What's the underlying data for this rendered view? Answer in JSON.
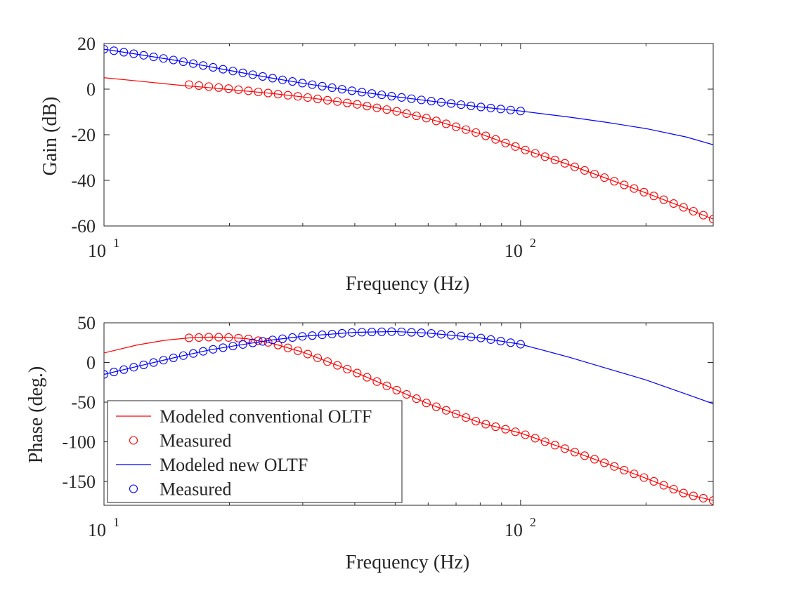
{
  "chart_data": [
    {
      "type": "line",
      "xlabel": "Frequency (Hz)",
      "ylabel": "Gain (dB)",
      "xscale": "log",
      "xlim": [
        10,
        290
      ],
      "ylim": [
        -60,
        20
      ],
      "yticks": [
        20,
        0,
        -20,
        -40,
        -60
      ],
      "ytick_labels": [
        "20",
        "0",
        "-20",
        "-40",
        "-60"
      ],
      "xtick_labels": [
        {
          "base": "10",
          "exp": "1",
          "value": 10
        },
        {
          "base": "10",
          "exp": "2",
          "value": 100
        }
      ],
      "grid": false,
      "series": [
        {
          "name": "Modeled conventional OLTF",
          "style": "line",
          "color": "#ff0000",
          "x": [
            10,
            12,
            15,
            18,
            20,
            25,
            30,
            40,
            50,
            60,
            80,
            100,
            130,
            160,
            200,
            250,
            290
          ],
          "y": [
            5,
            3.6,
            1.8,
            0.6,
            -0.2,
            -1.8,
            -3.4,
            -6.5,
            -9.6,
            -12.9,
            -19.6,
            -26,
            -33,
            -39,
            -45.5,
            -52.3,
            -57
          ]
        },
        {
          "name": "Measured",
          "style": "markers",
          "color": "#ff0000",
          "x": [
            16,
            20,
            25,
            30,
            40,
            50,
            60,
            80,
            100,
            130,
            160,
            200,
            250,
            290
          ],
          "y": [
            2,
            0.2,
            -1.8,
            -3.4,
            -6.5,
            -9.6,
            -12.9,
            -19.6,
            -26,
            -33,
            -39,
            -45.5,
            -52.3,
            -57
          ]
        },
        {
          "name": "Modeled new OLTF",
          "style": "line",
          "color": "#0000ff",
          "x": [
            10,
            12,
            15,
            20,
            25,
            30,
            40,
            50,
            60,
            80,
            100,
            130,
            160,
            200,
            250,
            290
          ],
          "y": [
            17.5,
            15.3,
            12.5,
            8.2,
            5,
            2.6,
            -0.9,
            -3.3,
            -5.1,
            -7.8,
            -9.6,
            -12.2,
            -14.5,
            -17.3,
            -21,
            -24.4
          ]
        },
        {
          "name": "Measured",
          "style": "markers",
          "color": "#0000ff",
          "x": [
            10,
            12,
            15,
            20,
            25,
            30,
            40,
            50,
            60,
            80,
            100
          ],
          "y": [
            17.5,
            15.3,
            12.5,
            8.2,
            5,
            2.6,
            -0.9,
            -3.3,
            -5.1,
            -7.8,
            -9.6
          ]
        }
      ]
    },
    {
      "type": "line",
      "xlabel": "Frequency (Hz)",
      "ylabel": "Phase (deg.)",
      "xscale": "log",
      "xlim": [
        10,
        290
      ],
      "ylim": [
        -180,
        50
      ],
      "yticks": [
        50,
        0,
        -50,
        -100,
        -150
      ],
      "ytick_labels": [
        "50",
        "0",
        "-50",
        "-100",
        "-150"
      ],
      "xtick_labels": [
        {
          "base": "10",
          "exp": "1",
          "value": 10
        },
        {
          "base": "10",
          "exp": "2",
          "value": 100
        }
      ],
      "grid": false,
      "legend": {
        "placement": "lower-left",
        "entries": [
          {
            "label": "Modeled conventional OLTF",
            "color": "#ff0000",
            "style": "line"
          },
          {
            "label": "Measured",
            "color": "#ff0000",
            "style": "marker"
          },
          {
            "label": "Modeled new OLTF",
            "color": "#0000ff",
            "style": "line"
          },
          {
            "label": "Measured",
            "color": "#0000ff",
            "style": "marker"
          }
        ]
      },
      "series": [
        {
          "name": "Modeled conventional OLTF",
          "style": "line",
          "color": "#ff0000",
          "x": [
            10,
            12,
            14,
            16,
            18,
            20,
            22,
            25,
            30,
            40,
            50,
            60,
            80,
            100,
            130,
            160,
            200,
            250,
            290
          ],
          "y": [
            12,
            22,
            28,
            31,
            32,
            31.5,
            30,
            25,
            13,
            -12,
            -34,
            -52,
            -76,
            -89,
            -110,
            -127,
            -146,
            -166,
            -174
          ]
        },
        {
          "name": "Measured",
          "style": "markers",
          "color": "#ff0000",
          "x": [
            16,
            18,
            20,
            22,
            25,
            30,
            40,
            50,
            60,
            80,
            100,
            130,
            160,
            200,
            250,
            290
          ],
          "y": [
            31,
            32,
            31.5,
            30,
            25,
            13,
            -12,
            -34,
            -52,
            -76,
            -89,
            -110,
            -127,
            -146,
            -166,
            -174
          ]
        },
        {
          "name": "Modeled new OLTF",
          "style": "line",
          "color": "#0000ff",
          "x": [
            10,
            12,
            15,
            18,
            20,
            25,
            30,
            40,
            50,
            60,
            80,
            100,
            130,
            160,
            200,
            250,
            290
          ],
          "y": [
            -15,
            -5,
            7,
            16,
            20,
            28,
            33,
            38,
            39,
            37,
            31,
            23,
            7,
            -7,
            -22,
            -40,
            -52
          ]
        },
        {
          "name": "Measured",
          "style": "markers",
          "color": "#0000ff",
          "x": [
            10,
            12,
            15,
            18,
            20,
            25,
            30,
            40,
            50,
            60,
            80,
            100
          ],
          "y": [
            -15,
            -5,
            7,
            16,
            20,
            28,
            33,
            38,
            39,
            37,
            31,
            23
          ]
        }
      ]
    }
  ]
}
